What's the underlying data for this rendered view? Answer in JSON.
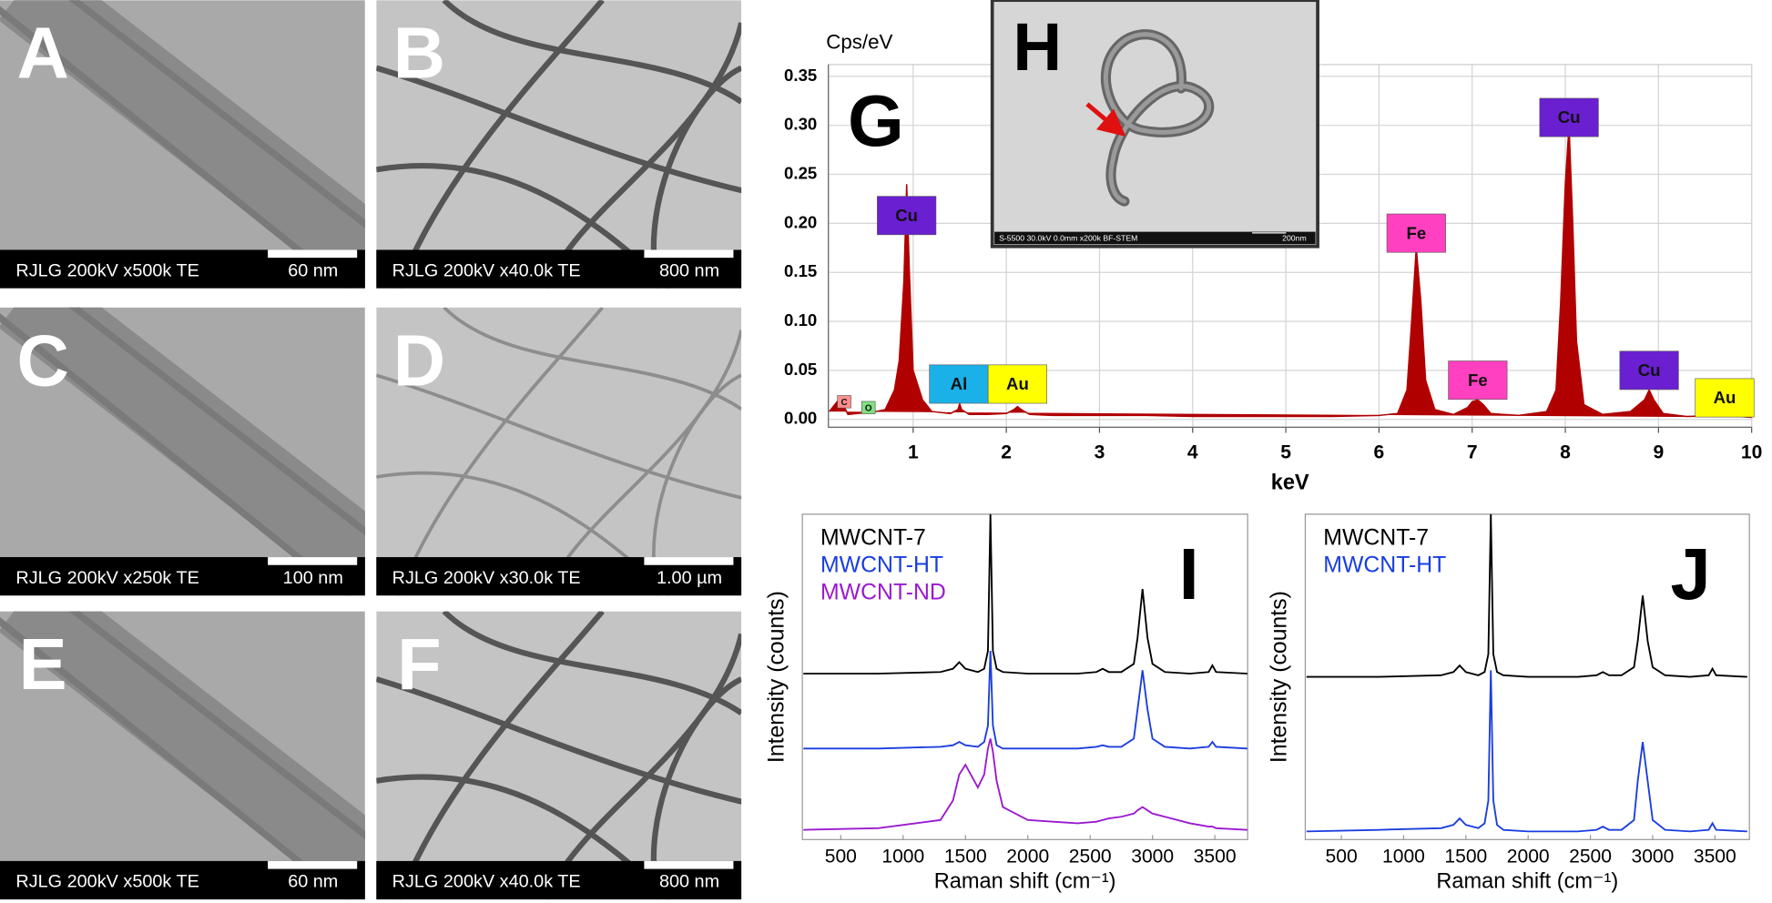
{
  "tem_panels": [
    {
      "letter": "A",
      "caption": "RJLG 200kV x500k TE",
      "scale": "60 nm"
    },
    {
      "letter": "B",
      "caption": "RJLG 200kV x40.0k TE",
      "scale": "800 nm"
    },
    {
      "letter": "C",
      "caption": "RJLG 200kV x250k TE",
      "scale": "100 nm"
    },
    {
      "letter": "D",
      "caption": "RJLG 200kV x30.0k TE",
      "scale": "1.00 µm"
    },
    {
      "letter": "E",
      "caption": "RJLG 200kV x500k TE",
      "scale": "60 nm"
    },
    {
      "letter": "F",
      "caption": "RJLG 200kV x40.0k TE",
      "scale": "800 nm"
    }
  ],
  "inset_image": {
    "letter": "H",
    "caption": "S-5500 30.0kV 0.0mm x200k BF-STEM",
    "scale": "200nm"
  },
  "chart_data": [
    {
      "type": "area",
      "panel_label": "G",
      "ylabel": "Cps/eV",
      "xlabel": "keV",
      "color": "#b00000",
      "grid": true,
      "x": [
        0.1,
        0.2,
        0.25,
        0.3,
        0.4,
        0.5,
        0.6,
        0.7,
        0.8,
        0.85,
        0.9,
        0.93,
        0.96,
        1.0,
        1.1,
        1.2,
        1.4,
        1.48,
        1.5,
        1.52,
        1.6,
        1.8,
        2.0,
        2.08,
        2.12,
        2.16,
        2.25,
        2.5,
        3,
        3.5,
        4,
        4.5,
        5,
        5.5,
        6,
        6.2,
        6.3,
        6.35,
        6.4,
        6.45,
        6.5,
        6.6,
        6.8,
        6.95,
        7.0,
        7.06,
        7.12,
        7.2,
        7.5,
        7.8,
        7.9,
        7.95,
        8.0,
        8.04,
        8.08,
        8.12,
        8.2,
        8.4,
        8.7,
        8.85,
        8.9,
        8.95,
        9.05,
        9.3,
        9.7,
        10
      ],
      "values": [
        0.008,
        0.02,
        0.015,
        0.005,
        0.006,
        0.007,
        0.008,
        0.01,
        0.03,
        0.06,
        0.14,
        0.24,
        0.15,
        0.05,
        0.02,
        0.008,
        0.006,
        0.01,
        0.016,
        0.01,
        0.005,
        0.005,
        0.006,
        0.01,
        0.013,
        0.01,
        0.005,
        0.004,
        0.004,
        0.004,
        0.003,
        0.003,
        0.003,
        0.003,
        0.004,
        0.006,
        0.03,
        0.1,
        0.175,
        0.12,
        0.04,
        0.01,
        0.005,
        0.012,
        0.018,
        0.02,
        0.015,
        0.006,
        0.004,
        0.008,
        0.03,
        0.12,
        0.24,
        0.3,
        0.2,
        0.08,
        0.015,
        0.005,
        0.008,
        0.02,
        0.03,
        0.02,
        0.006,
        0.003,
        0.004,
        0.002
      ],
      "xlim": [
        0.09,
        10
      ],
      "ylim": [
        -0.008,
        0.362
      ],
      "xticks": [
        1,
        2,
        3,
        4,
        5,
        6,
        7,
        8,
        9,
        10
      ],
      "yticks": [
        {
          "value": 0,
          "label": "0.00"
        },
        0.05,
        {
          "value": 0.1,
          "label": "0.10"
        },
        0.15,
        {
          "value": 0.2,
          "label": "0.20"
        },
        0.25,
        {
          "value": 0.3,
          "label": "0.30"
        },
        0.35
      ],
      "annotations": [
        {
          "label": "C",
          "x": 0.26,
          "y": 0.018,
          "color": "#ff9090"
        },
        {
          "label": "O",
          "x": 0.52,
          "y": 0.012,
          "color": "#80e080"
        },
        {
          "label": "Cu",
          "x": 0.93,
          "y": 0.208,
          "color": "#6a1fd0"
        },
        {
          "label": "Al",
          "x": 1.49,
          "y": 0.036,
          "color": "#1ab0e8"
        },
        {
          "label": "Au",
          "x": 2.12,
          "y": 0.036,
          "color": "#ffff00"
        },
        {
          "label": "Fe",
          "x": 6.4,
          "y": 0.19,
          "color": "#ff40c0"
        },
        {
          "label": "Fe",
          "x": 7.06,
          "y": 0.04,
          "color": "#ff40c0"
        },
        {
          "label": "Cu",
          "x": 8.04,
          "y": 0.308,
          "color": "#6a1fd0"
        },
        {
          "label": "Cu",
          "x": 8.9,
          "y": 0.05,
          "color": "#6a1fd0"
        },
        {
          "label": "Au",
          "x": 9.71,
          "y": 0.022,
          "color": "#ffff00"
        }
      ]
    },
    {
      "type": "line",
      "panel_label": "I",
      "xlabel": "Raman shift (cm⁻¹)",
      "ylabel": "Intensity (counts)",
      "x": [
        200,
        800,
        1300,
        1400,
        1450,
        1500,
        1600,
        1650,
        1680,
        1700,
        1720,
        1750,
        1800,
        2000,
        2400,
        2550,
        2600,
        2650,
        2750,
        2850,
        2880,
        2920,
        2960,
        3000,
        3100,
        3300,
        3450,
        3480,
        3510,
        3760
      ],
      "series": [
        {
          "name": "MWCNT-7",
          "color": "#000000",
          "values": [
            51,
            51,
            51.5,
            52.5,
            54.5,
            52.5,
            51.5,
            52.5,
            58,
            100,
            58,
            52.5,
            51.5,
            51,
            51,
            51.5,
            52.5,
            51.5,
            51.5,
            54,
            62,
            77,
            62,
            54,
            51.5,
            51,
            51.5,
            53.5,
            51.5,
            51
          ]
        },
        {
          "name": "MWCNT-HT",
          "color": "#1a3de0",
          "values": [
            28,
            28,
            28.5,
            29,
            30,
            29,
            28.5,
            30,
            35,
            58,
            35,
            29,
            28,
            28,
            28,
            28.5,
            29,
            28.5,
            28.5,
            31,
            40,
            52,
            40,
            31,
            28.5,
            28,
            28.5,
            30,
            28.5,
            28
          ]
        },
        {
          "name": "MWCNT-ND",
          "color": "#9a1ad0",
          "values": [
            3,
            3.5,
            6,
            12,
            20,
            23,
            16,
            20,
            28,
            31,
            27,
            18,
            10,
            6,
            5,
            5.5,
            6,
            6.5,
            7,
            8,
            9,
            10,
            9,
            8,
            7,
            5,
            4,
            4,
            3.5,
            3
          ]
        }
      ],
      "xlim": [
        192,
        3763
      ],
      "ylim": [
        0,
        100
      ],
      "xticks": [
        500,
        1000,
        1500,
        2000,
        2500,
        3000,
        3500
      ]
    },
    {
      "type": "line",
      "panel_label": "J",
      "xlabel": "Raman shift (cm⁻¹)",
      "ylabel": "Intensity (counts)",
      "x": [
        220,
        800,
        1300,
        1400,
        1450,
        1500,
        1600,
        1650,
        1680,
        1700,
        1720,
        1750,
        1800,
        2000,
        2400,
        2550,
        2600,
        2650,
        2750,
        2850,
        2880,
        2920,
        2960,
        3000,
        3100,
        3300,
        3450,
        3480,
        3510,
        3760
      ],
      "series": [
        {
          "name": "MWCNT-7",
          "color": "#000000",
          "values": [
            50,
            50,
            50.5,
            51.5,
            53.5,
            51.5,
            50.5,
            51.5,
            57,
            100,
            57,
            51.5,
            50.5,
            50,
            50,
            50.5,
            51.5,
            50.5,
            50.5,
            53,
            61,
            75,
            61,
            53,
            50.5,
            50,
            50.5,
            52.5,
            50.5,
            50
          ]
        },
        {
          "name": "MWCNT-HT",
          "color": "#1a3de0",
          "values": [
            2.5,
            3,
            3.5,
            4.5,
            6.5,
            4.5,
            3.5,
            5,
            12,
            52,
            12,
            4.5,
            3,
            2.5,
            2.5,
            3,
            4,
            3,
            3,
            6,
            18,
            30,
            18,
            6,
            3,
            2.5,
            3,
            5,
            3,
            2.5
          ]
        }
      ],
      "xlim": [
        210,
        3777
      ],
      "ylim": [
        0,
        100
      ],
      "xticks": [
        500,
        1000,
        1500,
        2000,
        2500,
        3000,
        3500
      ]
    }
  ]
}
